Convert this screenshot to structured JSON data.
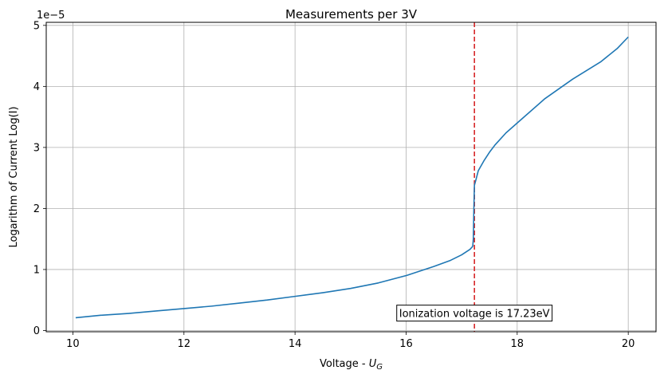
{
  "chart_data": {
    "type": "line",
    "title": "Measurements per 3V",
    "xlabel_main": "Voltage - ",
    "xlabel_symbol": "U",
    "xlabel_subscript": "G",
    "ylabel": "Logarithm of Current Log(I)",
    "y_offset_label_base": "1e",
    "y_offset_label_exp": "−5",
    "xlim": [
      9.52,
      20.5
    ],
    "ylim": [
      -0.02,
      5.05
    ],
    "x_ticks": [
      10,
      12,
      14,
      16,
      18,
      20
    ],
    "y_ticks": [
      0,
      1,
      2,
      3,
      4,
      5
    ],
    "grid": true,
    "series": [
      {
        "color": "#1f77b4",
        "x": [
          10.05,
          10.5,
          11.0,
          11.5,
          12.0,
          12.5,
          13.0,
          13.5,
          14.0,
          14.5,
          15.0,
          15.5,
          16.0,
          16.5,
          16.8,
          17.0,
          17.15,
          17.2,
          17.21,
          17.22,
          17.23,
          17.26,
          17.3,
          17.4,
          17.5,
          17.6,
          17.8,
          18.0,
          18.5,
          19.0,
          19.5,
          19.8,
          20.0
        ],
        "y": [
          0.21,
          0.25,
          0.28,
          0.32,
          0.36,
          0.4,
          0.45,
          0.5,
          0.56,
          0.62,
          0.69,
          0.78,
          0.9,
          1.05,
          1.15,
          1.24,
          1.33,
          1.38,
          1.5,
          2.0,
          2.38,
          2.48,
          2.62,
          2.78,
          2.92,
          3.04,
          3.24,
          3.4,
          3.8,
          4.12,
          4.4,
          4.62,
          4.81
        ]
      }
    ],
    "vline": {
      "x": 17.23,
      "color": "#d62728",
      "style": "dashed"
    },
    "annotation": {
      "text": "Ionization voltage is 17.23eV",
      "x": 17.23,
      "y": 0.22
    }
  }
}
